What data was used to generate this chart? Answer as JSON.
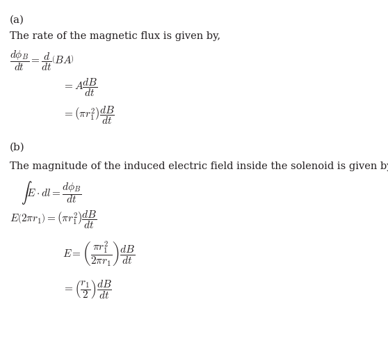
{
  "background_color": "#ffffff",
  "text_color": "#231f20",
  "figsize": [
    5.58,
    5.0
  ],
  "dpi": 100,
  "label_a": "(a)",
  "label_b": "(b)",
  "text_a": "The rate of the magnetic flux is given by,",
  "text_b": "The magnitude of the induced electric field inside the solenoid is given by,",
  "eq_a1": "$\\dfrac{d\\phi_B}{dt} = \\dfrac{d}{dt}\\left(BA\\right)$",
  "eq_a2": "$= A\\dfrac{dB}{dt}$",
  "eq_a3": "$= \\left(\\pi r_1^2\\right)\\dfrac{dB}{dt}$",
  "eq_b1": "$\\int E \\cdot dl = \\dfrac{d\\phi_B}{dt}$",
  "eq_b2": "$E\\left(2\\pi r_1\\right) = \\left(\\pi r_1^2\\right)\\dfrac{dB}{dt}$",
  "eq_b3": "$E = \\left(\\dfrac{\\pi r_1^2}{2\\pi r_1}\\right)\\dfrac{dB}{dt}$",
  "eq_b4": "$= \\left(\\dfrac{r_1}{2}\\right)\\dfrac{dB}{dt}$",
  "label_fs": 11,
  "text_fs": 10.5,
  "eq_fs": 11
}
